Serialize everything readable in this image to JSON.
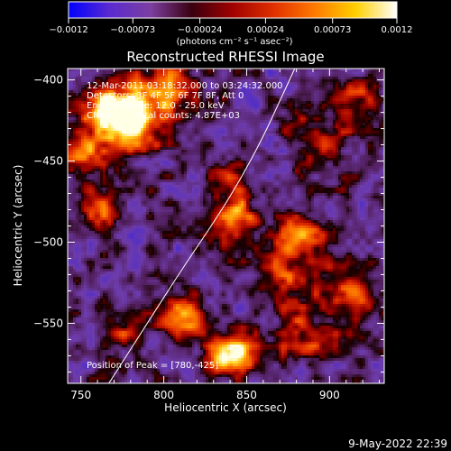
{
  "colorbar": {
    "tick_labels": [
      "-0.0012",
      "-0.00073",
      "-0.00024",
      "0.00024",
      "0.00073",
      "0.0012"
    ],
    "units_label": "(photons cm⁻² s⁻¹ asec⁻²)",
    "colormap": [
      "#0000ff",
      "#5a2ad0",
      "#7c3fa0",
      "#3a0010",
      "#a00000",
      "#e03000",
      "#ff7a00",
      "#ffd000",
      "#ffffff"
    ]
  },
  "chart_data": {
    "type": "heatmap",
    "title": "Reconstructed RHESSI Image",
    "xlabel": "Heliocentric X (arcsec)",
    "ylabel": "Heliocentric Y (arcsec)",
    "xlim": [
      742,
      933
    ],
    "ylim": [
      -587,
      -393
    ],
    "xticks": [
      750,
      800,
      850,
      900
    ],
    "xtick_labels": [
      "750",
      "800",
      "850",
      "900"
    ],
    "yticks": [
      -400,
      -450,
      -500,
      -550
    ],
    "ytick_labels": [
      "−400",
      "−450",
      "−500",
      "−550"
    ],
    "value_range": [
      -0.0012,
      0.0012
    ],
    "annotations": [
      "12-Mar-2011 03:18:32.000 to 03:24:32.000",
      "Detectors: 3F 4F 5F 6F 7F 8F, Att 0",
      "Energy Range: 12.0 - 25.0 keV",
      "Clean        Total counts: 4.87E+03"
    ],
    "peak_label": "Position of Peak = [780,-425]",
    "peak": [
      780,
      -425
    ],
    "sources": [
      {
        "x": 766,
        "y": -417,
        "amp": 1.0,
        "sigma": 13
      },
      {
        "x": 784,
        "y": -428,
        "amp": 0.9,
        "sigma": 11
      },
      {
        "x": 800,
        "y": -405,
        "amp": 0.7,
        "sigma": 14
      },
      {
        "x": 752,
        "y": -445,
        "amp": 0.55,
        "sigma": 11
      },
      {
        "x": 762,
        "y": -478,
        "amp": 0.6,
        "sigma": 9
      },
      {
        "x": 842,
        "y": -487,
        "amp": 0.9,
        "sigma": 10
      },
      {
        "x": 838,
        "y": -460,
        "amp": 0.55,
        "sigma": 9
      },
      {
        "x": 893,
        "y": -440,
        "amp": 0.5,
        "sigma": 13
      },
      {
        "x": 880,
        "y": -497,
        "amp": 0.7,
        "sigma": 13
      },
      {
        "x": 912,
        "y": -530,
        "amp": 0.6,
        "sigma": 12
      },
      {
        "x": 885,
        "y": -555,
        "amp": 0.55,
        "sigma": 12
      },
      {
        "x": 810,
        "y": -545,
        "amp": 0.7,
        "sigma": 10
      },
      {
        "x": 845,
        "y": -565,
        "amp": 0.6,
        "sigma": 12
      },
      {
        "x": 836,
        "y": -570,
        "amp": 0.85,
        "sigma": 7
      },
      {
        "x": 873,
        "y": -523,
        "amp": 0.45,
        "sigma": 10
      },
      {
        "x": 775,
        "y": -555,
        "amp": 0.35,
        "sigma": 10
      },
      {
        "x": 918,
        "y": -410,
        "amp": 0.4,
        "sigma": 10
      }
    ],
    "limb_curve": [
      [
        765,
        -590
      ],
      [
        790,
        -550
      ],
      [
        812,
        -515
      ],
      [
        832,
        -485
      ],
      [
        847,
        -460
      ],
      [
        860,
        -435
      ],
      [
        870,
        -413
      ],
      [
        879,
        -393
      ]
    ]
  },
  "footer": {
    "date": "9-May-2022 22:39"
  }
}
